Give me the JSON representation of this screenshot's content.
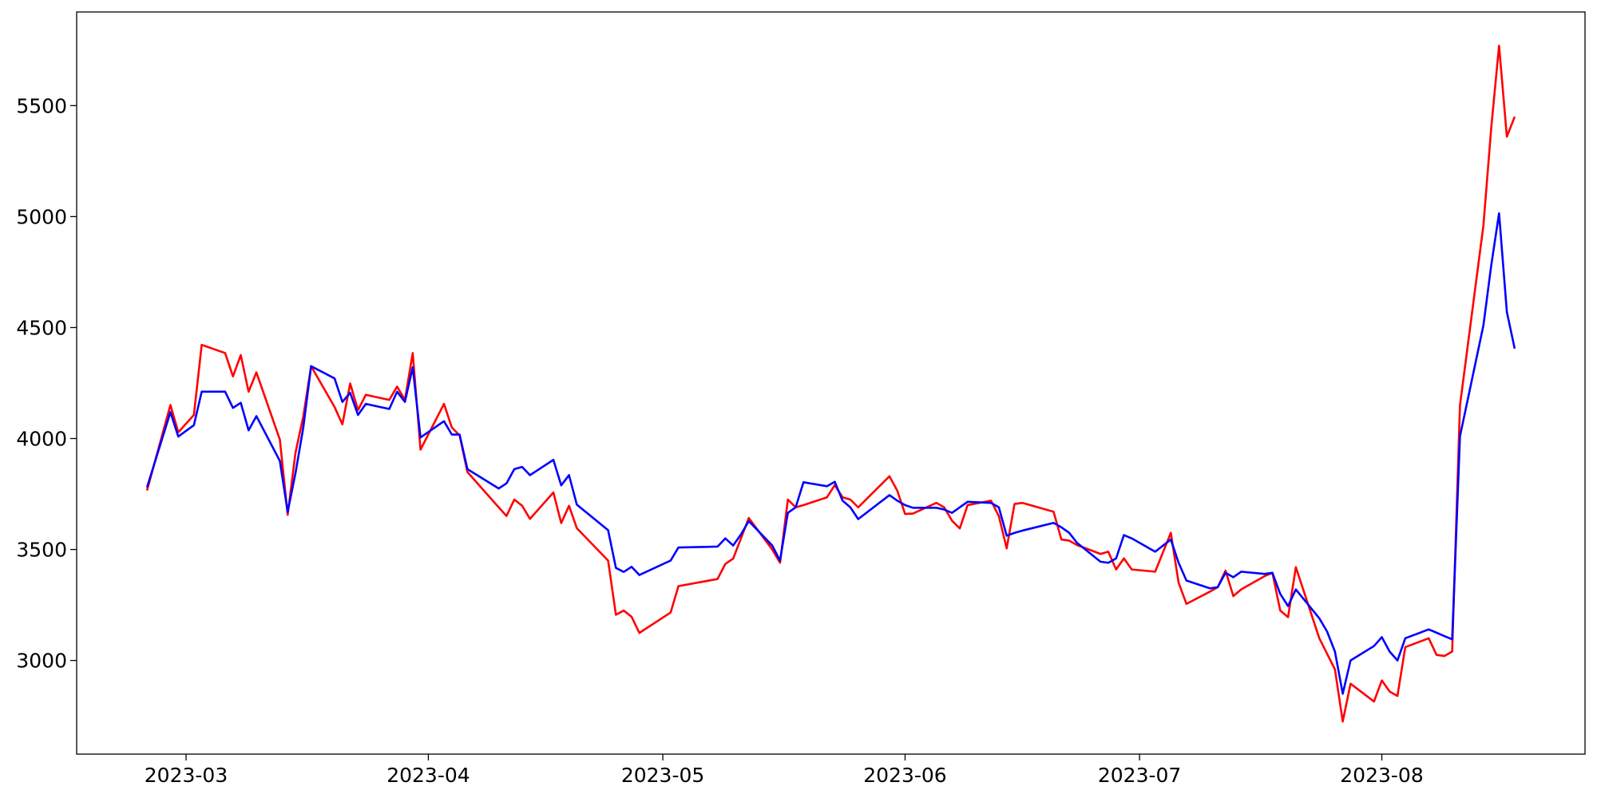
{
  "chart_data": {
    "type": "line",
    "x": [
      "2023-02-24",
      "2023-02-27",
      "2023-02-28",
      "2023-03-02",
      "2023-03-03",
      "2023-03-06",
      "2023-03-07",
      "2023-03-08",
      "2023-03-09",
      "2023-03-10",
      "2023-03-13",
      "2023-03-14",
      "2023-03-15",
      "2023-03-16",
      "2023-03-17",
      "2023-03-20",
      "2023-03-21",
      "2023-03-22",
      "2023-03-23",
      "2023-03-24",
      "2023-03-27",
      "2023-03-28",
      "2023-03-29",
      "2023-03-30",
      "2023-03-31",
      "2023-04-03",
      "2023-04-04",
      "2023-04-05",
      "2023-04-06",
      "2023-04-10",
      "2023-04-11",
      "2023-04-12",
      "2023-04-13",
      "2023-04-14",
      "2023-04-17",
      "2023-04-18",
      "2023-04-19",
      "2023-04-20",
      "2023-04-24",
      "2023-04-25",
      "2023-04-26",
      "2023-04-27",
      "2023-04-28",
      "2023-05-02",
      "2023-05-03",
      "2023-05-08",
      "2023-05-09",
      "2023-05-10",
      "2023-05-11",
      "2023-05-12",
      "2023-05-15",
      "2023-05-16",
      "2023-05-17",
      "2023-05-18",
      "2023-05-19",
      "2023-05-22",
      "2023-05-23",
      "2023-05-24",
      "2023-05-25",
      "2023-05-26",
      "2023-05-30",
      "2023-05-31",
      "2023-06-01",
      "2023-06-02",
      "2023-06-05",
      "2023-06-06",
      "2023-06-07",
      "2023-06-08",
      "2023-06-09",
      "2023-06-12",
      "2023-06-13",
      "2023-06-14",
      "2023-06-15",
      "2023-06-16",
      "2023-06-20",
      "2023-06-21",
      "2023-06-22",
      "2023-06-23",
      "2023-06-26",
      "2023-06-27",
      "2023-06-28",
      "2023-06-29",
      "2023-06-30",
      "2023-07-03",
      "2023-07-05",
      "2023-07-06",
      "2023-07-07",
      "2023-07-10",
      "2023-07-11",
      "2023-07-12",
      "2023-07-13",
      "2023-07-14",
      "2023-07-17",
      "2023-07-18",
      "2023-07-19",
      "2023-07-20",
      "2023-07-21",
      "2023-07-24",
      "2023-07-25",
      "2023-07-26",
      "2023-07-27",
      "2023-07-28",
      "2023-07-31",
      "2023-08-01",
      "2023-08-02",
      "2023-08-03",
      "2023-08-04",
      "2023-08-07",
      "2023-08-08",
      "2023-08-09",
      "2023-08-10",
      "2023-08-11",
      "2023-08-14",
      "2023-08-15",
      "2023-08-16",
      "2023-08-17",
      "2023-08-18"
    ],
    "series": [
      {
        "color": "#ff0000",
        "values": [
          3766,
          4151,
          4028,
          4106,
          4422,
          4385,
          4280,
          4376,
          4211,
          4298,
          3995,
          3656,
          3936,
          4100,
          4326,
          4142,
          4064,
          4248,
          4128,
          4197,
          4174,
          4234,
          4174,
          4385,
          3950,
          4156,
          4050,
          4014,
          3849,
          3690,
          3651,
          3725,
          3697,
          3638,
          3757,
          3619,
          3697,
          3596,
          3450,
          3206,
          3225,
          3197,
          3124,
          3216,
          3335,
          3367,
          3435,
          3459,
          3550,
          3642,
          3500,
          3440,
          3725,
          3690,
          3700,
          3735,
          3790,
          3735,
          3725,
          3690,
          3830,
          3765,
          3660,
          3662,
          3710,
          3690,
          3630,
          3595,
          3700,
          3720,
          3650,
          3505,
          3705,
          3710,
          3670,
          3545,
          3540,
          3520,
          3480,
          3490,
          3410,
          3460,
          3410,
          3400,
          3575,
          3350,
          3255,
          3310,
          3330,
          3405,
          3290,
          3320,
          3380,
          3395,
          3225,
          3195,
          3420,
          3100,
          3030,
          2960,
          2725,
          2895,
          2815,
          2910,
          2860,
          2840,
          3060,
          3100,
          3025,
          3020,
          3040,
          4150,
          4960,
          5400,
          5770,
          5360,
          5450
        ]
      },
      {
        "color": "#0000ff",
        "values": [
          3780,
          4119,
          4009,
          4060,
          4211,
          4211,
          4138,
          4161,
          4037,
          4101,
          3899,
          3670,
          3844,
          4050,
          4326,
          4271,
          4165,
          4206,
          4106,
          4156,
          4133,
          4211,
          4165,
          4321,
          4005,
          4078,
          4018,
          4018,
          3862,
          3775,
          3798,
          3862,
          3872,
          3835,
          3904,
          3789,
          3835,
          3702,
          3587,
          3417,
          3399,
          3422,
          3385,
          3450,
          3509,
          3513,
          3550,
          3518,
          3568,
          3628,
          3518,
          3450,
          3665,
          3690,
          3803,
          3785,
          3805,
          3720,
          3690,
          3637,
          3745,
          3720,
          3700,
          3688,
          3688,
          3680,
          3665,
          3690,
          3715,
          3710,
          3690,
          3562,
          3575,
          3585,
          3620,
          3600,
          3575,
          3530,
          3445,
          3440,
          3460,
          3565,
          3550,
          3490,
          3545,
          3440,
          3360,
          3325,
          3330,
          3395,
          3375,
          3400,
          3390,
          3395,
          3300,
          3245,
          3320,
          3190,
          3130,
          3040,
          2850,
          3000,
          3065,
          3105,
          3040,
          3000,
          3100,
          3140,
          3125,
          3110,
          3095,
          4010,
          4510,
          4780,
          5015,
          4570,
          4405
        ]
      }
    ],
    "xlim": [
      "2023-02-15",
      "2023-08-27"
    ],
    "xticks": [
      {
        "value": "2023-03-01",
        "label": "2023-03"
      },
      {
        "value": "2023-04-01",
        "label": "2023-04"
      },
      {
        "value": "2023-05-01",
        "label": "2023-05"
      },
      {
        "value": "2023-06-01",
        "label": "2023-06"
      },
      {
        "value": "2023-07-01",
        "label": "2023-07"
      },
      {
        "value": "2023-08-01",
        "label": "2023-08"
      }
    ],
    "ylim": [
      2578,
      5922
    ],
    "yticks": [
      3000,
      3500,
      4000,
      4500,
      5000,
      5500
    ],
    "grid": false
  }
}
